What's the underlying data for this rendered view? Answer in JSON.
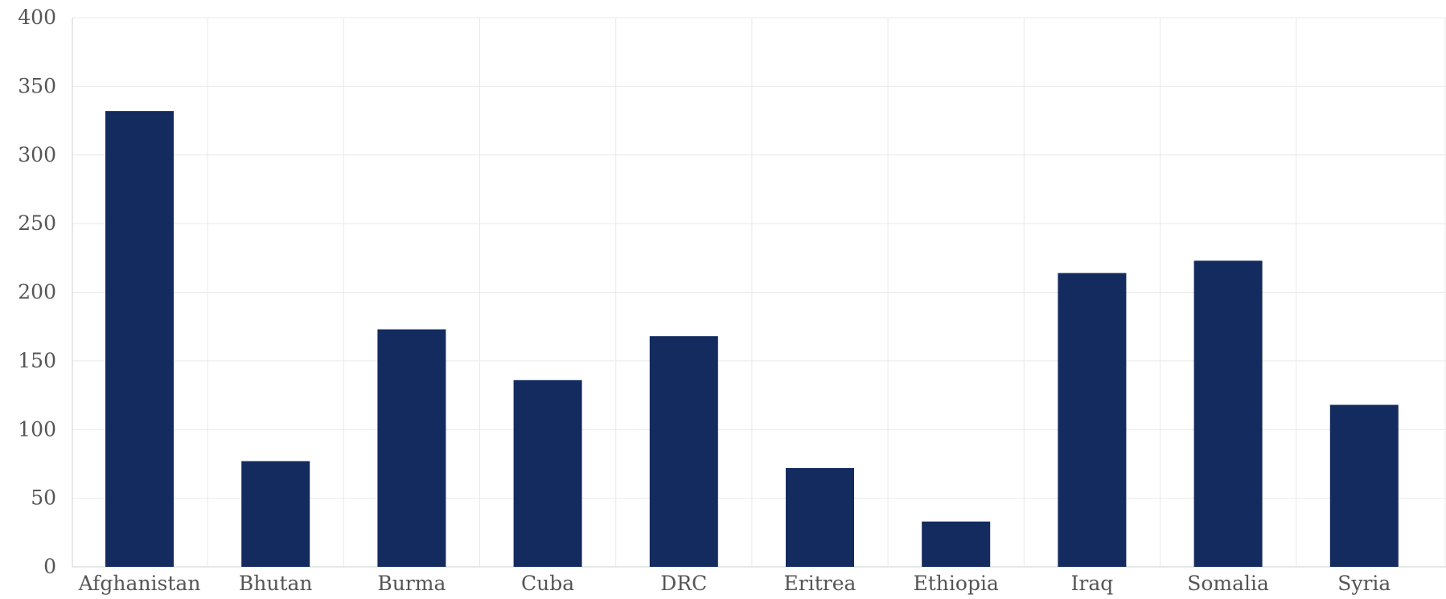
{
  "chart_data": {
    "type": "bar",
    "categories": [
      "Afghanistan",
      "Bhutan",
      "Burma",
      "Cuba",
      "DRC",
      "Eritrea",
      "Ethiopia",
      "Iraq",
      "Somalia",
      "Syria"
    ],
    "values": [
      332,
      77,
      173,
      136,
      168,
      72,
      33,
      214,
      223,
      118
    ],
    "title": "",
    "xlabel": "",
    "ylabel": "",
    "ylim": [
      0,
      400
    ],
    "yticks": [
      0,
      50,
      100,
      150,
      200,
      250,
      300,
      350,
      400
    ],
    "grid": true,
    "legend": "none",
    "bar_color": "#132b5e"
  }
}
